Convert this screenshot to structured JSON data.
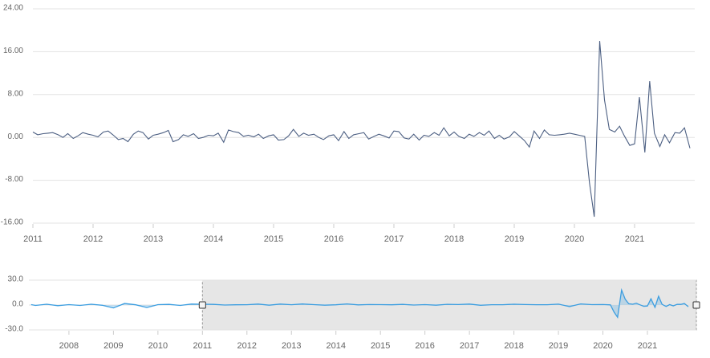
{
  "chart_data": [
    {
      "type": "line",
      "color": "#4c5f82",
      "xlim": [
        2011,
        2022
      ],
      "ylim": [
        -16,
        24
      ],
      "xticks": [
        2011,
        2012,
        2013,
        2014,
        2015,
        2016,
        2017,
        2018,
        2019,
        2020,
        2021
      ],
      "yticks": [
        {
          "value": -16,
          "label": "-16.00"
        },
        {
          "value": -8,
          "label": "-8.00"
        },
        {
          "value": 0,
          "label": "0.00"
        },
        {
          "value": 8,
          "label": "8.00"
        },
        {
          "value": 16,
          "label": "16.00"
        },
        {
          "value": 24,
          "label": "24.00"
        }
      ],
      "grid": true,
      "x": [
        2011,
        2011.08,
        2011.17,
        2011.25,
        2011.33,
        2011.42,
        2011.5,
        2011.58,
        2011.67,
        2011.75,
        2011.83,
        2011.92,
        2012,
        2012.08,
        2012.17,
        2012.25,
        2012.33,
        2012.42,
        2012.5,
        2012.58,
        2012.67,
        2012.75,
        2012.83,
        2012.92,
        2013,
        2013.08,
        2013.17,
        2013.25,
        2013.33,
        2013.42,
        2013.5,
        2013.58,
        2013.67,
        2013.75,
        2013.83,
        2013.92,
        2014,
        2014.08,
        2014.17,
        2014.25,
        2014.33,
        2014.42,
        2014.5,
        2014.58,
        2014.67,
        2014.75,
        2014.83,
        2014.92,
        2015,
        2015.08,
        2015.17,
        2015.25,
        2015.33,
        2015.42,
        2015.5,
        2015.58,
        2015.67,
        2015.75,
        2015.83,
        2015.92,
        2016,
        2016.08,
        2016.17,
        2016.25,
        2016.33,
        2016.42,
        2016.5,
        2016.58,
        2016.67,
        2016.75,
        2016.83,
        2016.92,
        2017,
        2017.08,
        2017.17,
        2017.25,
        2017.33,
        2017.42,
        2017.5,
        2017.58,
        2017.67,
        2017.75,
        2017.83,
        2017.92,
        2018,
        2018.08,
        2018.17,
        2018.25,
        2018.33,
        2018.42,
        2018.5,
        2018.58,
        2018.67,
        2018.75,
        2018.83,
        2018.92,
        2019,
        2019.08,
        2019.17,
        2019.25,
        2019.33,
        2019.42,
        2019.5,
        2019.58,
        2019.67,
        2019.75,
        2019.83,
        2019.92,
        2020,
        2020.08,
        2020.17,
        2020.25,
        2020.33,
        2020.42,
        2020.5,
        2020.58,
        2020.67,
        2020.75,
        2020.83,
        2020.92,
        2021,
        2021.08,
        2021.17,
        2021.25,
        2021.33,
        2021.42,
        2021.5,
        2021.58,
        2021.67,
        2021.75,
        2021.83,
        2021.92
      ],
      "values": [
        1.0,
        0.5,
        0.7,
        0.8,
        0.9,
        0.5,
        0.0,
        0.7,
        -0.2,
        0.3,
        0.9,
        0.6,
        0.4,
        0.1,
        1.0,
        1.2,
        0.5,
        -0.4,
        -0.2,
        -0.8,
        0.6,
        1.2,
        0.9,
        -0.3,
        0.4,
        0.6,
        0.9,
        1.3,
        -0.8,
        -0.4,
        0.5,
        0.2,
        0.7,
        -0.2,
        0.0,
        0.4,
        0.3,
        0.8,
        -0.9,
        1.4,
        1.1,
        0.9,
        0.2,
        0.4,
        0.1,
        0.6,
        -0.2,
        0.3,
        0.5,
        -0.5,
        -0.4,
        0.3,
        1.5,
        0.2,
        0.8,
        0.4,
        0.6,
        0.0,
        -0.4,
        0.3,
        0.5,
        -0.6,
        1.1,
        -0.2,
        0.5,
        0.7,
        0.9,
        -0.3,
        0.2,
        0.6,
        0.3,
        -0.1,
        1.2,
        1.1,
        -0.1,
        -0.3,
        0.6,
        -0.5,
        0.4,
        0.2,
        0.9,
        0.4,
        1.8,
        0.3,
        1.0,
        0.2,
        -0.2,
        0.6,
        0.2,
        0.9,
        0.4,
        1.2,
        -0.2,
        0.4,
        -0.3,
        0.1,
        1.1,
        0.3,
        -0.6,
        -1.8,
        1.2,
        -0.2,
        1.4,
        0.5,
        0.4,
        0.5,
        0.6,
        0.8,
        0.6,
        0.4,
        0.2,
        -8.5,
        -14.8,
        18.0,
        7.0,
        1.5,
        1.0,
        2.1,
        0.3,
        -1.5,
        -1.2,
        7.5,
        -2.8,
        10.5,
        0.8,
        -1.7,
        0.5,
        -1.0,
        0.9,
        0.8,
        1.8,
        -2.0
      ]
    },
    {
      "type": "area",
      "color": "#3d9ee0",
      "xlim": [
        2007.1,
        2022.1
      ],
      "ylim": [
        -30,
        30
      ],
      "xticks": [
        2008,
        2009,
        2010,
        2011,
        2012,
        2013,
        2014,
        2015,
        2016,
        2017,
        2018,
        2019,
        2020,
        2021
      ],
      "yticks": [
        {
          "value": -30,
          "label": "-30.0"
        },
        {
          "value": 0,
          "label": "0.0"
        },
        {
          "value": 30,
          "label": "30.0"
        }
      ],
      "grid": true,
      "x": [
        2007.15,
        2007.25,
        2007.5,
        2007.75,
        2008,
        2008.25,
        2008.5,
        2008.75,
        2009,
        2009.25,
        2009.5,
        2009.75,
        2010,
        2010.25,
        2010.5,
        2010.75,
        2011,
        2011.25,
        2011.5,
        2011.75,
        2012,
        2012.25,
        2012.5,
        2012.75,
        2013,
        2013.25,
        2013.5,
        2013.75,
        2014,
        2014.25,
        2014.5,
        2014.75,
        2015,
        2015.25,
        2015.5,
        2015.75,
        2016,
        2016.25,
        2016.5,
        2016.75,
        2017,
        2017.25,
        2017.5,
        2017.75,
        2018,
        2018.25,
        2018.5,
        2018.75,
        2019,
        2019.25,
        2019.5,
        2019.75,
        2020,
        2020.17,
        2020.25,
        2020.33,
        2020.42,
        2020.5,
        2020.58,
        2020.67,
        2020.75,
        2020.83,
        2020.92,
        2021,
        2021.08,
        2021.17,
        2021.25,
        2021.33,
        2021.42,
        2021.5,
        2021.58,
        2021.67,
        2021.75,
        2021.83,
        2021.92
      ],
      "values": [
        0.5,
        -0.5,
        1.0,
        -0.8,
        0.5,
        -0.5,
        1.0,
        -0.3,
        -3.5,
        1.8,
        0.3,
        -3.0,
        0.5,
        0.8,
        -0.5,
        1.2,
        1.0,
        0.8,
        0.0,
        0.3,
        0.4,
        1.2,
        -0.2,
        1.2,
        0.4,
        1.3,
        0.5,
        -0.2,
        0.3,
        1.4,
        0.2,
        0.6,
        0.5,
        0.3,
        0.8,
        0.0,
        0.5,
        -0.2,
        0.9,
        0.6,
        1.2,
        -0.3,
        0.4,
        0.4,
        1.0,
        0.6,
        0.4,
        0.4,
        1.1,
        -1.8,
        1.4,
        0.5,
        0.6,
        0.2,
        -8.5,
        -14.8,
        18.0,
        7.0,
        1.5,
        1.0,
        2.1,
        0.3,
        -1.5,
        -1.2,
        7.5,
        -2.8,
        10.5,
        0.8,
        -1.7,
        0.5,
        -1.0,
        0.9,
        0.8,
        1.8,
        -2.0
      ]
    }
  ]
}
